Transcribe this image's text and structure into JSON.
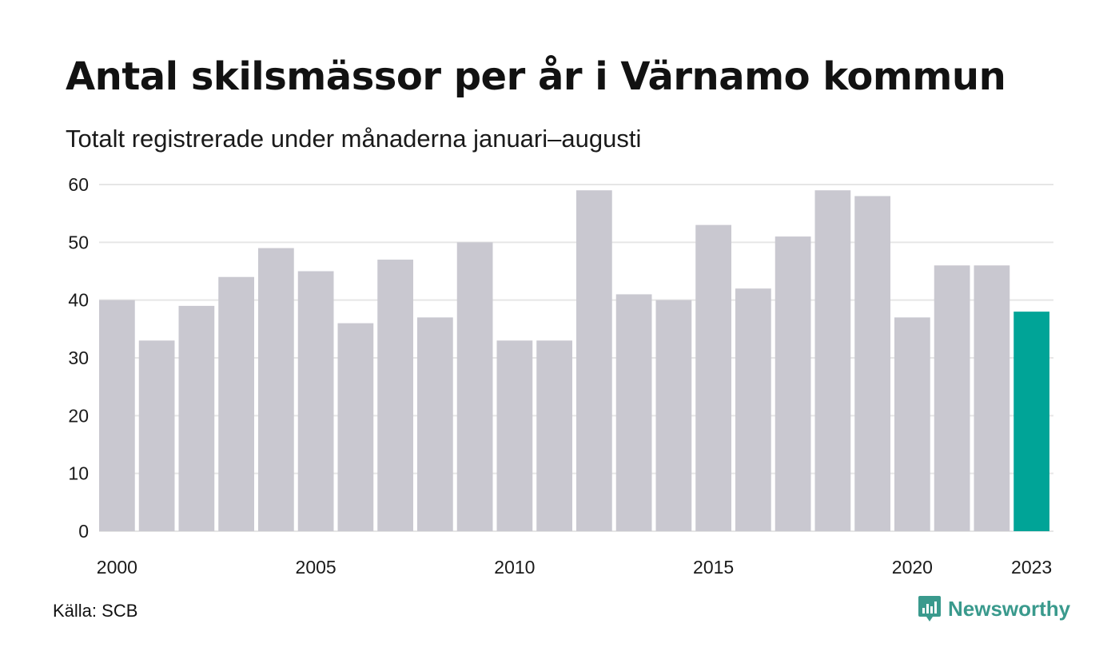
{
  "colors": {
    "bar": "#c9c8d0",
    "highlight": "#00a497",
    "grid": "#e6e6e6",
    "brand": "#3a9a8d"
  },
  "chart_data": {
    "type": "bar",
    "title": "Antal skilsmässor per år i Värnamo kommun",
    "subtitle": "Totalt registrerade under månaderna januari–augusti",
    "xlabel": "",
    "ylabel": "",
    "categories": [
      "2000",
      "2001",
      "2002",
      "2003",
      "2004",
      "2005",
      "2006",
      "2007",
      "2008",
      "2009",
      "2010",
      "2011",
      "2012",
      "2013",
      "2014",
      "2015",
      "2016",
      "2017",
      "2018",
      "2019",
      "2020",
      "2021",
      "2022",
      "2023"
    ],
    "values": [
      40,
      33,
      39,
      44,
      49,
      45,
      36,
      47,
      37,
      50,
      33,
      33,
      59,
      41,
      40,
      53,
      42,
      51,
      59,
      58,
      37,
      46,
      46,
      38
    ],
    "x_tick_labels": [
      "2000",
      "2005",
      "2010",
      "2015",
      "2020",
      "2023"
    ],
    "y_ticks": [
      0,
      10,
      20,
      30,
      40,
      50,
      60
    ],
    "ylim": [
      0,
      60
    ],
    "highlight_category": "2023",
    "grid": true,
    "legend": "none"
  },
  "footer": {
    "source": "Källa: SCB",
    "brand": "Newsworthy",
    "brand_icon": "newsworthy-logo-icon"
  }
}
